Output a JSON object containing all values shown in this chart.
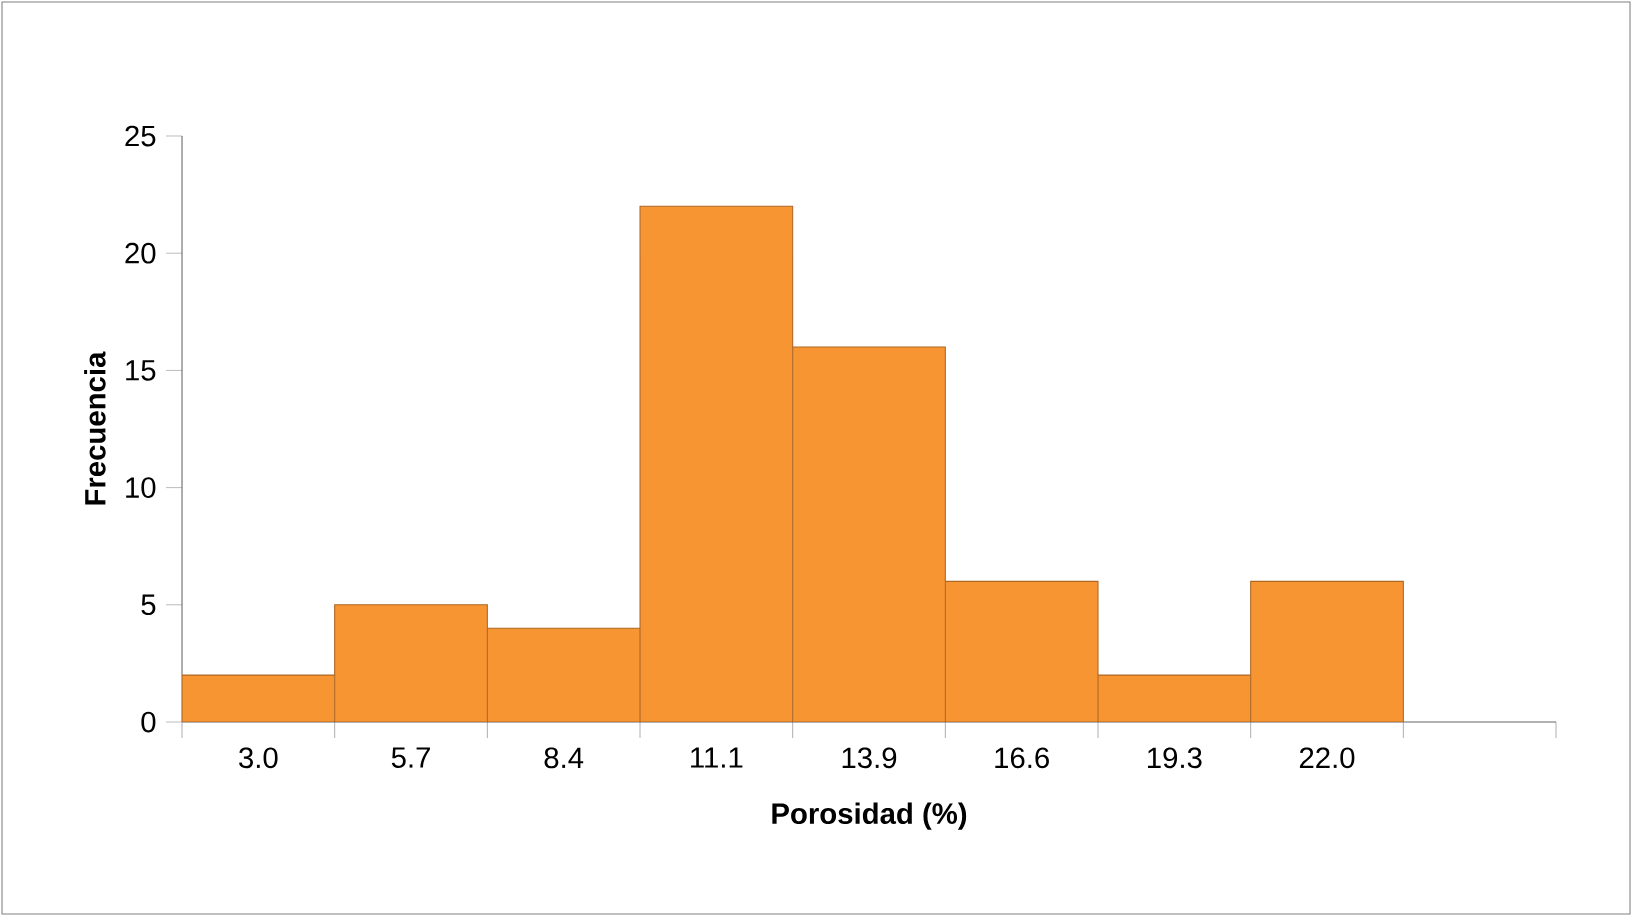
{
  "chart_data": {
    "type": "bar",
    "xlabel": "**Porosidad (%)**",
    "ylabel": "**Frecuencia**",
    "categories": [
      "3.0",
      "5.7",
      "8.4",
      "11.1",
      "13.9",
      "16.6",
      "19.3",
      "22.0",
      null
    ],
    "values": [
      2,
      5,
      4,
      22,
      16,
      6,
      2,
      6,
      null
    ],
    "color": "#f79533",
    "ylim": [
      0,
      25
    ],
    "yticks": [
      0,
      5,
      10,
      15,
      20,
      25
    ],
    "grid": false
  }
}
